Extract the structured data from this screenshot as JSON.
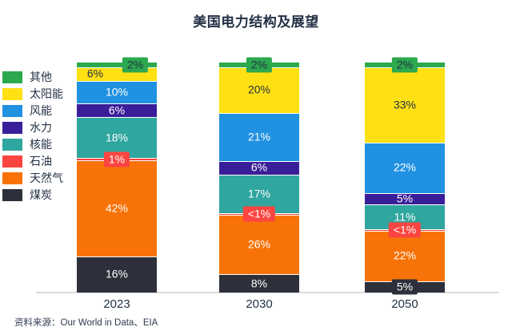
{
  "title": "美国电力结构及展望",
  "source_note": "资料来源：Our World in Data、EIA",
  "colors": {
    "background": "#ffffff",
    "text": "#243146",
    "axis_line": "#d9d9d9",
    "label_on_light": "#243146",
    "label_on_dark": "#ffffff"
  },
  "chart_data": {
    "type": "bar",
    "stacked": true,
    "unit": "%",
    "title": "美国电力结构及展望",
    "categories": [
      "2023",
      "2030",
      "2050"
    ],
    "stack_order": "top-to-bottom",
    "legend_position": "left",
    "grid": false,
    "series": [
      {
        "name": "其他",
        "color": "#2ca84f",
        "values": [
          2,
          2,
          2
        ],
        "labels": [
          "2%",
          "2%",
          "2%"
        ]
      },
      {
        "name": "太阳能",
        "color": "#ffe013",
        "values": [
          6,
          20,
          33
        ],
        "labels": [
          "6%",
          "20%",
          "33%"
        ]
      },
      {
        "name": "风能",
        "color": "#2191e1",
        "values": [
          10,
          21,
          22
        ],
        "labels": [
          "10%",
          "21%",
          "22%"
        ]
      },
      {
        "name": "水力",
        "color": "#3a1e99",
        "values": [
          6,
          6,
          5
        ],
        "labels": [
          "6%",
          "6%",
          "5%"
        ]
      },
      {
        "name": "核能",
        "color": "#2fa69f",
        "values": [
          18,
          17,
          11
        ],
        "labels": [
          "18%",
          "17%",
          "11%"
        ]
      },
      {
        "name": "石油",
        "color": "#fa4540",
        "values": [
          1,
          0.5,
          0.5
        ],
        "labels": [
          "1%",
          "<1%",
          "<1%"
        ]
      },
      {
        "name": "天然气",
        "color": "#f87307",
        "values": [
          42,
          26,
          22
        ],
        "labels": [
          "42%",
          "26%",
          "22%"
        ]
      },
      {
        "name": "煤炭",
        "color": "#2d303a",
        "values": [
          16,
          8,
          5
        ],
        "labels": [
          "16%",
          "8%",
          "5%"
        ]
      }
    ]
  }
}
